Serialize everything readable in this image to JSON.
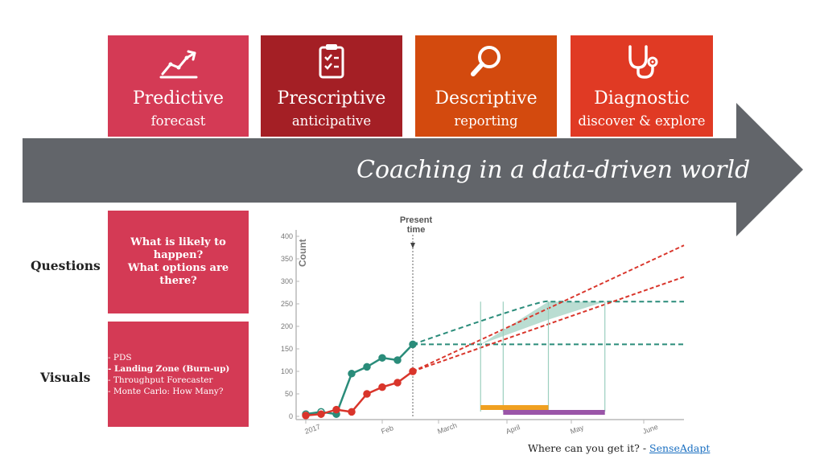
{
  "tiles": [
    {
      "title": "Predictive",
      "subtitle": "forecast",
      "color": "#d43a55",
      "icon": "trend-chart-icon"
    },
    {
      "title": "Prescriptive",
      "subtitle": "anticipative",
      "color": "#a41f25",
      "icon": "clipboard-checklist-icon"
    },
    {
      "title": "Descriptive",
      "subtitle": "reporting",
      "color": "#d34a0e",
      "icon": "magnifier-icon"
    },
    {
      "title": "Diagnostic",
      "subtitle": "discover & explore",
      "color": "#e03a24",
      "icon": "stethoscope-icon"
    }
  ],
  "arrow": {
    "text": "Coaching in a data-driven world",
    "color": "#62656a"
  },
  "rows": {
    "questions": "Questions",
    "visuals": "Visuals"
  },
  "questions_box": {
    "lines": [
      "What is likely to",
      "happen?",
      "What options are",
      "there?"
    ]
  },
  "visuals_box": {
    "items": [
      {
        "text": "- PDS",
        "bold": false
      },
      {
        "text": "- Landing Zone (Burn-up)",
        "bold": true
      },
      {
        "text": "- Throughput Forecaster",
        "bold": false
      },
      {
        "text": "- Monte Carlo: How Many?",
        "bold": false
      }
    ]
  },
  "chart_data": {
    "type": "line",
    "ylabel": "Count",
    "marker_label": "Present\ntime",
    "yticks": [
      0,
      50,
      100,
      150,
      200,
      250,
      300,
      350,
      400
    ],
    "ylim": [
      0,
      420
    ],
    "xticks": [
      "2017",
      "Feb",
      "March",
      "April",
      "May",
      "June"
    ],
    "series": [
      {
        "color": "#2a8c7a",
        "x": [
          0,
          1,
          2,
          3,
          4,
          5,
          6,
          7
        ],
        "y": [
          5,
          10,
          5,
          95,
          110,
          130,
          125,
          160
        ]
      },
      {
        "color": "#d9352b",
        "x": [
          0,
          1,
          2,
          3,
          4,
          5,
          6,
          7
        ],
        "y": [
          2,
          5,
          15,
          10,
          50,
          65,
          75,
          100
        ]
      }
    ],
    "projections": [
      {
        "kind": "curve",
        "color": "#2a8c7a",
        "start": [
          7,
          160
        ],
        "end": [
          19,
          255
        ]
      },
      {
        "kind": "flat",
        "color": "#2a8c7a",
        "value": 160,
        "x": [
          7,
          19
        ]
      },
      {
        "kind": "line",
        "color": "#d9352b",
        "start": [
          7,
          100
        ],
        "end": [
          19,
          380
        ]
      },
      {
        "kind": "line",
        "color": "#d9352b",
        "start": [
          7,
          100
        ],
        "end": [
          19,
          310
        ]
      }
    ],
    "timeline_bars": [
      {
        "color": "#f0a020",
        "from": "April",
        "to": "May",
        "level": 1
      },
      {
        "color": "#9a55a8",
        "from": "April",
        "to": "May",
        "level": 2
      }
    ]
  },
  "footer": {
    "prefix": "Where can you get it? - ",
    "link": "SenseAdapt"
  }
}
